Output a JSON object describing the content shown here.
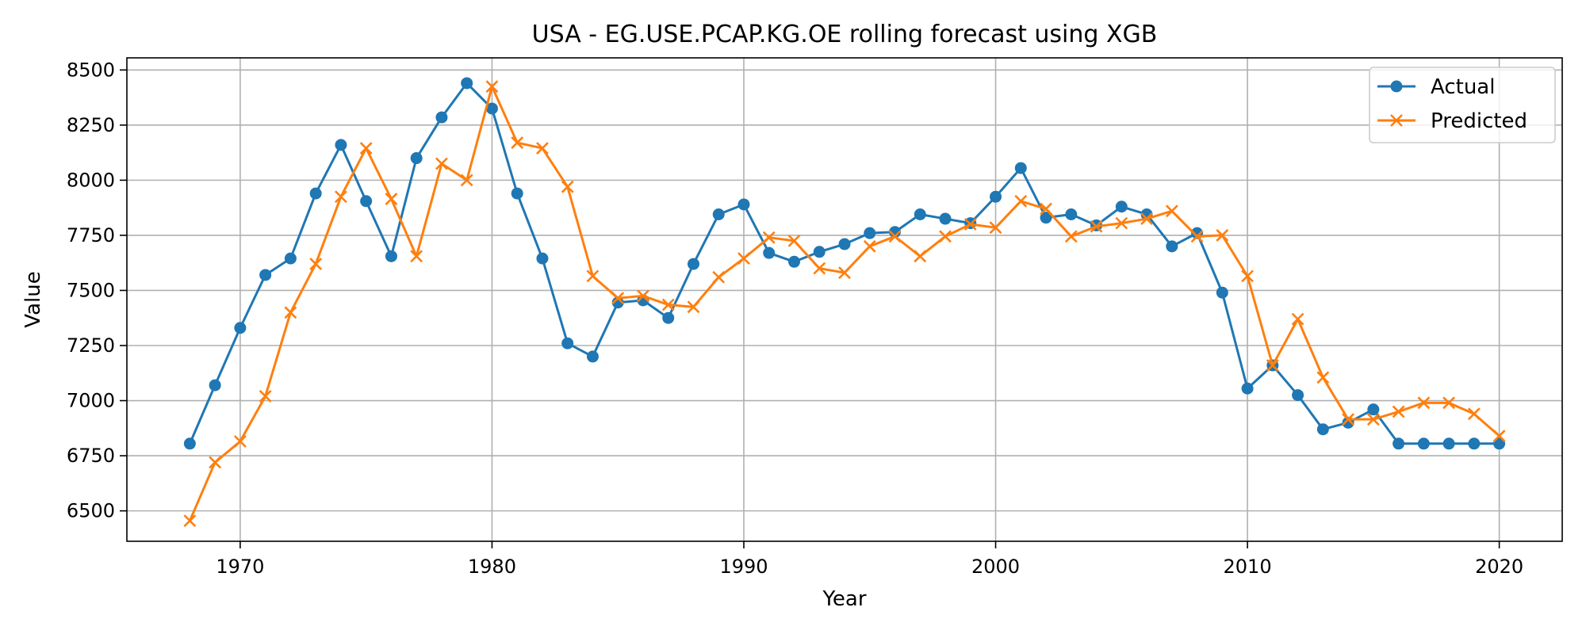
{
  "chart_data": {
    "type": "line",
    "title": "USA - EG.USE.PCAP.KG.OE rolling forecast using XGB",
    "xlabel": "Year",
    "ylabel": "Value",
    "xlim": [
      1965.5,
      2022.5
    ],
    "ylim": [
      6362,
      8555
    ],
    "xticks": [
      1970,
      1980,
      1990,
      2000,
      2010,
      2020
    ],
    "yticks": [
      6500,
      6750,
      7000,
      7250,
      7500,
      7750,
      8000,
      8250,
      8500
    ],
    "grid": true,
    "legend_position": "top-right",
    "x": [
      1968,
      1969,
      1970,
      1971,
      1972,
      1973,
      1974,
      1975,
      1976,
      1977,
      1978,
      1979,
      1980,
      1981,
      1982,
      1983,
      1984,
      1985,
      1986,
      1987,
      1988,
      1989,
      1990,
      1991,
      1992,
      1993,
      1994,
      1995,
      1996,
      1997,
      1998,
      1999,
      2000,
      2001,
      2002,
      2003,
      2004,
      2005,
      2006,
      2007,
      2008,
      2009,
      2010,
      2011,
      2012,
      2013,
      2014,
      2015,
      2016,
      2017,
      2018,
      2019,
      2020
    ],
    "series": [
      {
        "name": "Actual",
        "color": "#1f77b4",
        "marker": "circle",
        "values": [
          6805,
          7070,
          7330,
          7570,
          7645,
          7940,
          8160,
          7905,
          7655,
          8100,
          8285,
          8440,
          8325,
          7940,
          7645,
          7260,
          7200,
          7445,
          7455,
          7375,
          7620,
          7845,
          7890,
          7670,
          7630,
          7675,
          7710,
          7760,
          7765,
          7845,
          7825,
          7805,
          7925,
          8055,
          7830,
          7845,
          7795,
          7880,
          7845,
          7700,
          7760,
          7490,
          7055,
          7160,
          7025,
          6870,
          6900,
          6960,
          6805,
          6805,
          6805,
          6805,
          6805
        ]
      },
      {
        "name": "Predicted",
        "color": "#ff7f0e",
        "marker": "x",
        "values": [
          6455,
          6720,
          6815,
          7020,
          7400,
          7620,
          7925,
          8145,
          7915,
          7655,
          8075,
          8000,
          8425,
          8170,
          8145,
          7970,
          7565,
          7465,
          7475,
          7435,
          7425,
          7560,
          7645,
          7740,
          7725,
          7600,
          7580,
          7700,
          7745,
          7655,
          7745,
          7800,
          7785,
          7905,
          7870,
          7745,
          7790,
          7805,
          7825,
          7860,
          7745,
          7750,
          7565,
          7160,
          7370,
          7105,
          6915,
          6915,
          6950,
          6990,
          6990,
          6940,
          6840
        ]
      }
    ]
  }
}
